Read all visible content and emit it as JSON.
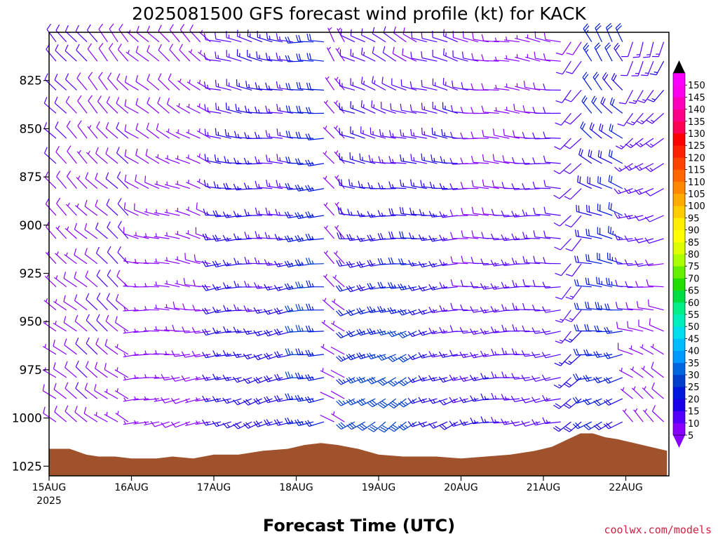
{
  "title": "2025081500 GFS forecast wind profile (kt) for KACK",
  "credit": "coolwx.com/models",
  "chart_data": {
    "type": "wind-barb time-height section",
    "title": "2025081500 GFS forecast wind profile (kt) for KACK",
    "xlabel": "Forecast Time (UTC)",
    "ylabel": "",
    "y_ticks": [
      825,
      850,
      875,
      900,
      925,
      950,
      975,
      1000,
      1025
    ],
    "ylim": [
      800,
      1030
    ],
    "y_reversed": true,
    "x_ticks": [
      {
        "day": 0,
        "label": "15AUG",
        "sublabel": "2025"
      },
      {
        "day": 1,
        "label": "16AUG",
        "sublabel": ""
      },
      {
        "day": 2,
        "label": "17AUG",
        "sublabel": ""
      },
      {
        "day": 3,
        "label": "18AUG",
        "sublabel": ""
      },
      {
        "day": 4,
        "label": "19AUG",
        "sublabel": ""
      },
      {
        "day": 5,
        "label": "20AUG",
        "sublabel": ""
      },
      {
        "day": 6,
        "label": "21AUG",
        "sublabel": ""
      },
      {
        "day": 7,
        "label": "22AUG",
        "sublabel": ""
      }
    ],
    "xlim_days": [
      0,
      7.5
    ],
    "time_step_hours": 3,
    "barb_levels_hpa": [
      805,
      815,
      830,
      842,
      855,
      868,
      881,
      895,
      907,
      920,
      932,
      944,
      955,
      967,
      979,
      990,
      1002
    ],
    "colorbar": {
      "levels": [
        5,
        10,
        15,
        20,
        25,
        30,
        35,
        40,
        45,
        50,
        55,
        60,
        65,
        70,
        75,
        80,
        85,
        90,
        95,
        100,
        105,
        110,
        115,
        120,
        125,
        130,
        135,
        140,
        145,
        150
      ],
      "colors": [
        "#8800ff",
        "#5500ff",
        "#1a00e6",
        "#0018d9",
        "#003ecc",
        "#0066e0",
        "#0099ff",
        "#00bbff",
        "#00ddee",
        "#00eebb",
        "#00ee88",
        "#00dd44",
        "#22dd00",
        "#66ee00",
        "#aaff00",
        "#ddff00",
        "#ffff00",
        "#ffee00",
        "#ffcc00",
        "#ffaa00",
        "#ff8800",
        "#ff6600",
        "#ff4400",
        "#ff2200",
        "#ff0000",
        "#ff0055",
        "#ff0088",
        "#ff00bb",
        "#ff00ee",
        "#ff00ff"
      ],
      "extend": "both"
    },
    "terrain_color": "#a0522d",
    "surface_pressure": [
      [
        0,
        1016
      ],
      [
        0.25,
        1016
      ],
      [
        0.45,
        1019
      ],
      [
        0.6,
        1020
      ],
      [
        0.8,
        1020
      ],
      [
        1.0,
        1021
      ],
      [
        1.3,
        1021
      ],
      [
        1.5,
        1020
      ],
      [
        1.75,
        1021
      ],
      [
        2.0,
        1019
      ],
      [
        2.3,
        1019
      ],
      [
        2.6,
        1017
      ],
      [
        2.9,
        1016
      ],
      [
        3.1,
        1014
      ],
      [
        3.3,
        1013
      ],
      [
        3.5,
        1014
      ],
      [
        3.75,
        1016
      ],
      [
        4.0,
        1019
      ],
      [
        4.3,
        1020
      ],
      [
        4.7,
        1020
      ],
      [
        5.0,
        1021
      ],
      [
        5.3,
        1020
      ],
      [
        5.6,
        1019
      ],
      [
        5.9,
        1017
      ],
      [
        6.1,
        1015
      ],
      [
        6.25,
        1012
      ],
      [
        6.45,
        1008
      ],
      [
        6.6,
        1008
      ],
      [
        6.75,
        1010
      ],
      [
        6.9,
        1011
      ],
      [
        7.1,
        1013
      ],
      [
        7.3,
        1015
      ],
      [
        7.5,
        1017
      ]
    ],
    "wind_segments": [
      {
        "t0": 0.0,
        "t1": 1.0,
        "dir_top": 320,
        "dir_bottom": 305,
        "spd_top": 10,
        "spd_bottom": 8
      },
      {
        "t0": 1.0,
        "t1": 1.95,
        "dir_top": 315,
        "dir_bottom": 255,
        "spd_top": 8,
        "spd_bottom": 6
      },
      {
        "t0": 1.95,
        "t1": 2.0,
        "dir_top": 200,
        "dir_bottom": 180,
        "spd_top": 5,
        "spd_bottom": 5
      },
      {
        "t0": 2.0,
        "t1": 3.0,
        "dir_top": 285,
        "dir_bottom": 250,
        "spd_top": 14,
        "spd_bottom": 18
      },
      {
        "t0": 3.0,
        "t1": 3.35,
        "dir_top": 270,
        "dir_bottom": 260,
        "spd_top": 22,
        "spd_bottom": 24
      },
      {
        "t0": 3.35,
        "t1": 3.55,
        "dir_top": 330,
        "dir_bottom": 300,
        "spd_top": 6,
        "spd_bottom": 4
      },
      {
        "t0": 3.55,
        "t1": 4.5,
        "dir_top": 300,
        "dir_bottom": 235,
        "spd_top": 10,
        "spd_bottom": 28
      },
      {
        "t0": 4.5,
        "t1": 5.0,
        "dir_top": 290,
        "dir_bottom": 245,
        "spd_top": 12,
        "spd_bottom": 18
      },
      {
        "t0": 5.0,
        "t1": 6.25,
        "dir_top": 280,
        "dir_bottom": 260,
        "spd_top": 8,
        "spd_bottom": 14
      },
      {
        "t0": 6.25,
        "t1": 6.4,
        "dir_top": 220,
        "dir_bottom": 225,
        "spd_top": 8,
        "spd_bottom": 18
      },
      {
        "t0": 6.4,
        "t1": 7.0,
        "dir_top": 330,
        "dir_bottom": 245,
        "spd_top": 22,
        "spd_bottom": 20
      },
      {
        "t0": 7.0,
        "t1": 7.5,
        "dir_top": 200,
        "dir_bottom": 315,
        "spd_top": 14,
        "spd_bottom": 8
      }
    ]
  }
}
